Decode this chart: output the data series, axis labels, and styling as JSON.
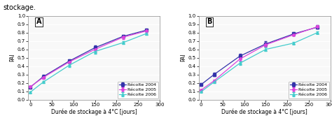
{
  "panel_A": {
    "label": "A",
    "series": [
      {
        "name": "Récolte 2004",
        "color": "#3333aa",
        "marker": "s",
        "x": [
          0,
          30,
          90,
          150,
          215,
          270
        ],
        "y": [
          0.15,
          0.275,
          0.46,
          0.62,
          0.755,
          0.83
        ],
        "yerr": [
          0.01,
          0.02,
          0.02,
          0.025,
          0.02,
          0.02
        ]
      },
      {
        "name": "Récolte 2005",
        "color": "#dd44dd",
        "marker": "o",
        "x": [
          0,
          30,
          90,
          150,
          215,
          270
        ],
        "y": [
          0.155,
          0.265,
          0.45,
          0.6,
          0.745,
          0.82
        ],
        "yerr": [
          0.01,
          0.015,
          0.02,
          0.025,
          0.02,
          0.02
        ]
      },
      {
        "name": "Récolte 2006",
        "color": "#44cccc",
        "marker": "^",
        "x": [
          0,
          30,
          90,
          150,
          215,
          270
        ],
        "y": [
          0.09,
          0.21,
          0.41,
          0.575,
          0.68,
          0.79
        ],
        "yerr": [
          0.01,
          0.015,
          0.02,
          0.025,
          0.02,
          0.02
        ]
      }
    ]
  },
  "panel_B": {
    "label": "B",
    "series": [
      {
        "name": "Récolte 2004",
        "color": "#3333aa",
        "marker": "s",
        "x": [
          0,
          30,
          90,
          150,
          215,
          270
        ],
        "y": [
          0.18,
          0.3,
          0.52,
          0.665,
          0.785,
          0.865
        ],
        "yerr": [
          0.015,
          0.02,
          0.025,
          0.03,
          0.02,
          0.02
        ]
      },
      {
        "name": "Récolte 2005",
        "color": "#dd44dd",
        "marker": "o",
        "x": [
          0,
          30,
          90,
          150,
          215,
          270
        ],
        "y": [
          0.115,
          0.225,
          0.485,
          0.655,
          0.775,
          0.87
        ],
        "yerr": [
          0.01,
          0.015,
          0.02,
          0.025,
          0.015,
          0.02
        ]
      },
      {
        "name": "Récolte 2006",
        "color": "#44cccc",
        "marker": "^",
        "x": [
          0,
          30,
          90,
          150,
          215,
          270
        ],
        "y": [
          0.095,
          0.21,
          0.435,
          0.6,
          0.675,
          0.8
        ],
        "yerr": [
          0.01,
          0.015,
          0.02,
          0.02,
          0.015,
          0.015
        ]
      }
    ]
  },
  "xlabel": "Durée de stockage à 4°C [jours]",
  "ylabel": "PAI",
  "xlim": [
    -5,
    295
  ],
  "ylim": [
    0.0,
    1.0
  ],
  "yticks": [
    0.0,
    0.1,
    0.2,
    0.3,
    0.4,
    0.5,
    0.6,
    0.7,
    0.8,
    0.9,
    1.0
  ],
  "xticks": [
    0,
    50,
    100,
    150,
    200,
    250,
    300
  ],
  "legend_fontsize": 4.5,
  "tick_fontsize": 5,
  "label_fontsize": 5.5,
  "background_color": "#f8f8f8",
  "top_text": "stockage.",
  "figsize": [
    4.74,
    1.89
  ]
}
